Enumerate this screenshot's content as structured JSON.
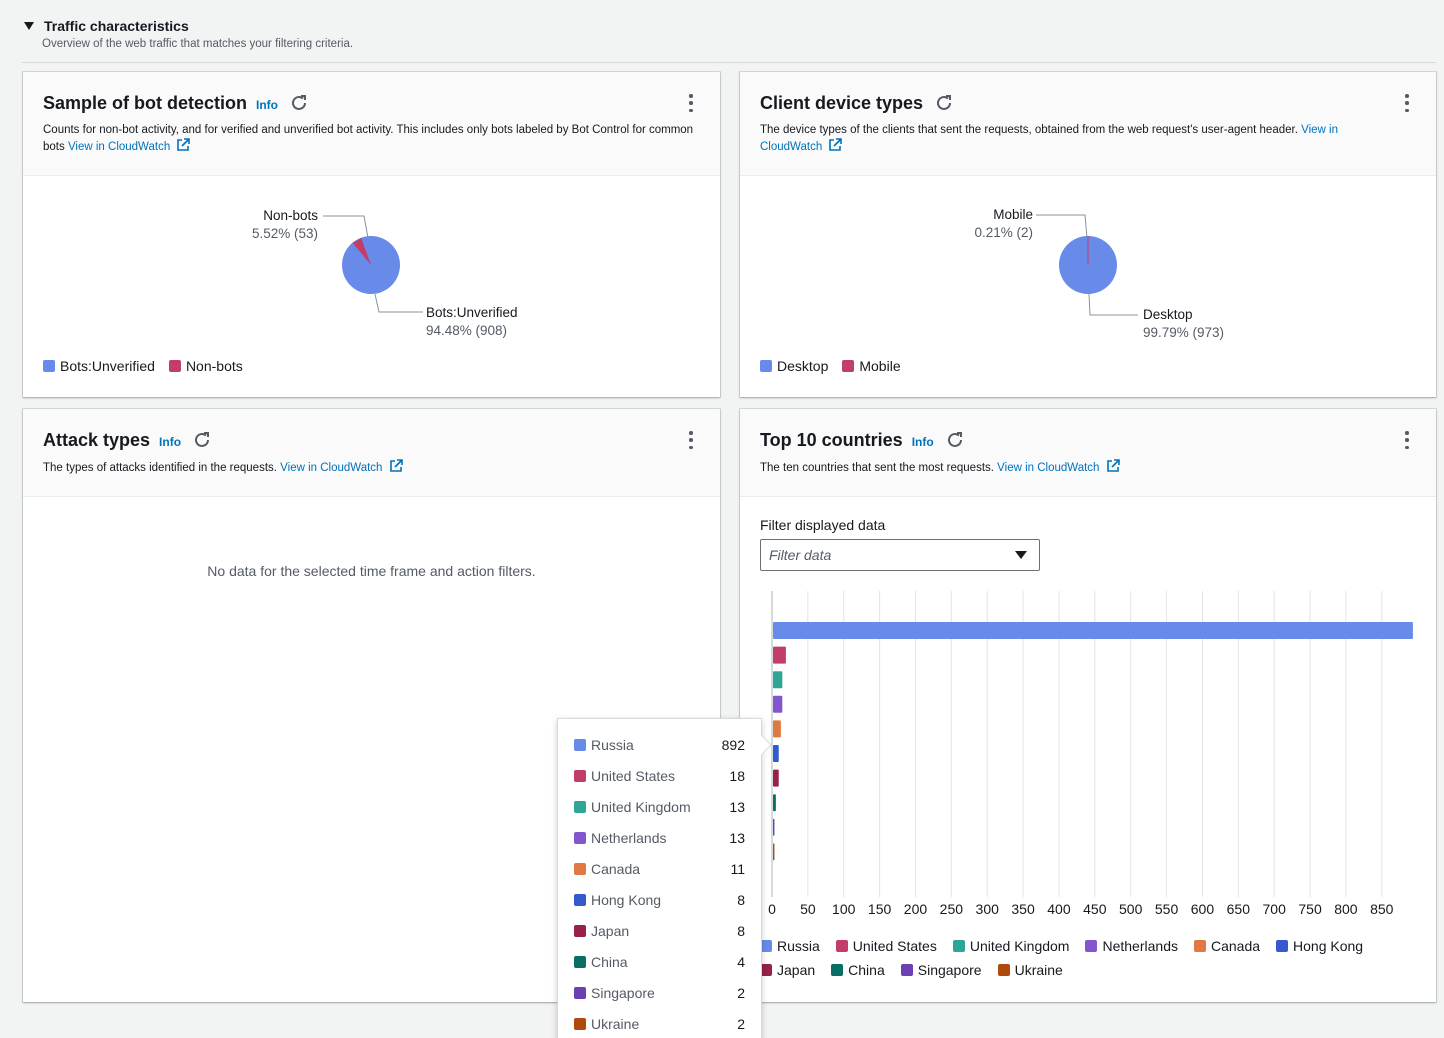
{
  "section": {
    "title": "Traffic characteristics",
    "subtitle": "Overview of the web traffic that matches your filtering criteria."
  },
  "bot_card": {
    "title": "Sample of bot detection",
    "info": "Info",
    "desc": "Counts for non-bot activity, and for verified and unverified bot activity. This includes only bots labeled by Bot Control for common bots",
    "link": "View in CloudWatch",
    "labels": [
      {
        "name": "Non-bots",
        "pct": "5.52% (53)"
      },
      {
        "name": "Bots:Unverified",
        "pct": "94.48% (908)"
      }
    ],
    "legend": [
      {
        "label": "Bots:Unverified",
        "color": "#688ae8"
      },
      {
        "label": "Non-bots",
        "color": "#c33d69"
      }
    ]
  },
  "device_card": {
    "title": "Client device types",
    "desc": "The device types of the clients that sent the requests, obtained from the web request's user-agent header.",
    "link1": "View in",
    "link2": "CloudWatch",
    "labels": [
      {
        "name": "Mobile",
        "pct": "0.21% (2)"
      },
      {
        "name": "Desktop",
        "pct": "99.79% (973)"
      }
    ],
    "legend": [
      {
        "label": "Desktop",
        "color": "#688ae8"
      },
      {
        "label": "Mobile",
        "color": "#c33d69"
      }
    ]
  },
  "attack_card": {
    "title": "Attack types",
    "info": "Info",
    "desc": "The types of attacks identified in the requests.",
    "link": "View in CloudWatch",
    "empty": "No data for the selected time frame and action filters."
  },
  "countries_card": {
    "title": "Top 10 countries",
    "info": "Info",
    "desc": "The ten countries that sent the most requests.",
    "link": "View in CloudWatch",
    "filter_label": "Filter displayed data",
    "filter_placeholder": "Filter data"
  },
  "chart_data": [
    {
      "type": "pie",
      "slices": [
        {
          "label": "Bots:Unverified",
          "value": 908,
          "percent": 94.48
        },
        {
          "label": "Non-bots",
          "value": 53,
          "percent": 5.52
        }
      ]
    },
    {
      "type": "pie",
      "slices": [
        {
          "label": "Desktop",
          "value": 973,
          "percent": 99.79
        },
        {
          "label": "Mobile",
          "value": 2,
          "percent": 0.21
        }
      ]
    },
    {
      "type": "bar",
      "orientation": "horizontal",
      "categories": [
        "Russia",
        "United States",
        "United Kingdom",
        "Netherlands",
        "Canada",
        "Hong Kong",
        "Japan",
        "China",
        "Singapore",
        "Ukraine"
      ],
      "values": [
        892,
        18,
        13,
        13,
        11,
        8,
        8,
        4,
        2,
        2
      ],
      "colors": [
        "#688ae8",
        "#c33d69",
        "#2ea597",
        "#8456ce",
        "#e07941",
        "#3759ce",
        "#962249",
        "#096f64",
        "#6b40b2",
        "#ad4a0c"
      ],
      "xticks": [
        "0",
        "50",
        "100",
        "150",
        "200",
        "250",
        "300",
        "350",
        "400",
        "450",
        "500",
        "550",
        "600",
        "650",
        "700",
        "750",
        "800",
        "850"
      ],
      "xlim": [
        0,
        892
      ],
      "grid": true,
      "legend": "bottom"
    }
  ]
}
